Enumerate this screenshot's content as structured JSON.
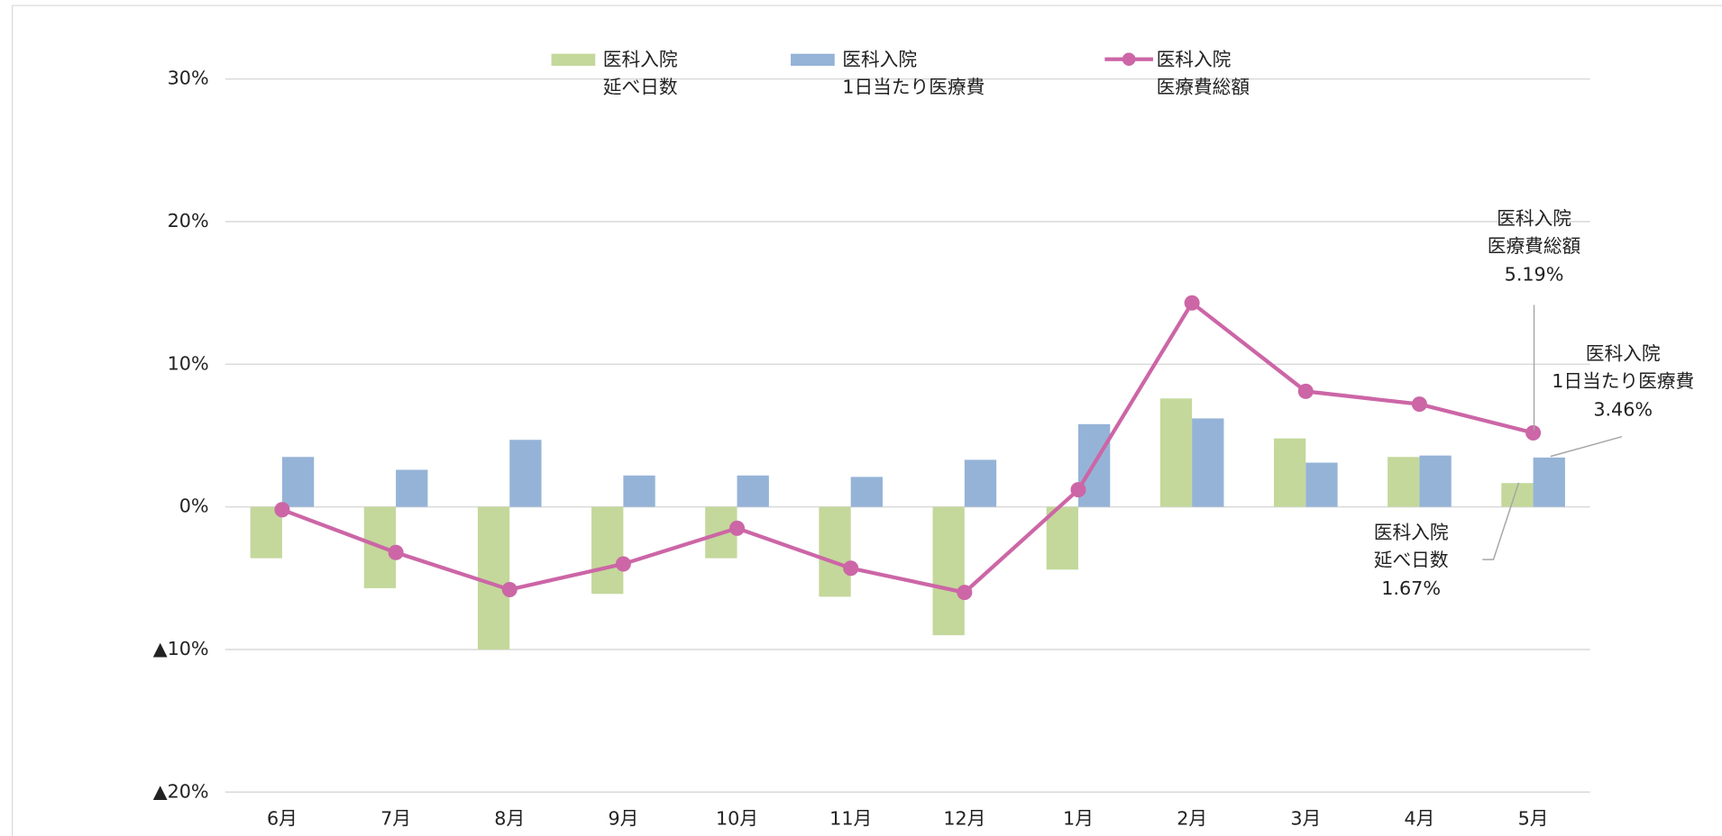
{
  "chart_data": {
    "type": "bar",
    "categories": [
      "6月",
      "7月",
      "8月",
      "9月",
      "10月",
      "11月",
      "12月",
      "1月",
      "2月",
      "3月",
      "4月",
      "5月"
    ],
    "series": [
      {
        "name": "医科入院\n延べ日数",
        "type": "bar",
        "color": "#c4d89b",
        "values": [
          -3.6,
          -5.7,
          -10.0,
          -6.1,
          -3.6,
          -6.3,
          -9.0,
          -4.4,
          7.6,
          4.8,
          3.5,
          1.67
        ],
        "value_labels": [
          null,
          null,
          null,
          null,
          null,
          null,
          null,
          null,
          null,
          null,
          null,
          "1.67%"
        ]
      },
      {
        "name": "医科入院\n1日当たり医療費",
        "type": "bar",
        "color": "#95b3d7",
        "values": [
          3.5,
          2.6,
          4.7,
          2.2,
          2.2,
          2.1,
          3.3,
          5.8,
          6.2,
          3.1,
          3.6,
          3.46
        ],
        "value_labels": [
          null,
          null,
          null,
          null,
          null,
          null,
          null,
          null,
          null,
          null,
          null,
          "3.46%"
        ]
      },
      {
        "name": "医科入院\n医療費総額",
        "type": "line",
        "color": "#cc66a6",
        "values": [
          -0.2,
          -3.2,
          -5.8,
          -4.0,
          -1.5,
          -4.3,
          -6.0,
          1.2,
          14.3,
          8.1,
          7.2,
          5.19
        ],
        "value_labels": [
          null,
          null,
          null,
          null,
          null,
          null,
          null,
          null,
          null,
          null,
          null,
          "5.19%"
        ]
      }
    ],
    "ylim": [
      -20,
      30
    ],
    "yticks": [
      {
        "value": -20,
        "label": "▲20%"
      },
      {
        "value": -10,
        "label": "▲10%"
      },
      {
        "value": 0,
        "label": "0%"
      },
      {
        "value": 10,
        "label": "10%"
      },
      {
        "value": 20,
        "label": "20%"
      },
      {
        "value": 30,
        "label": "30%"
      }
    ],
    "grid": true,
    "legend": "top"
  }
}
